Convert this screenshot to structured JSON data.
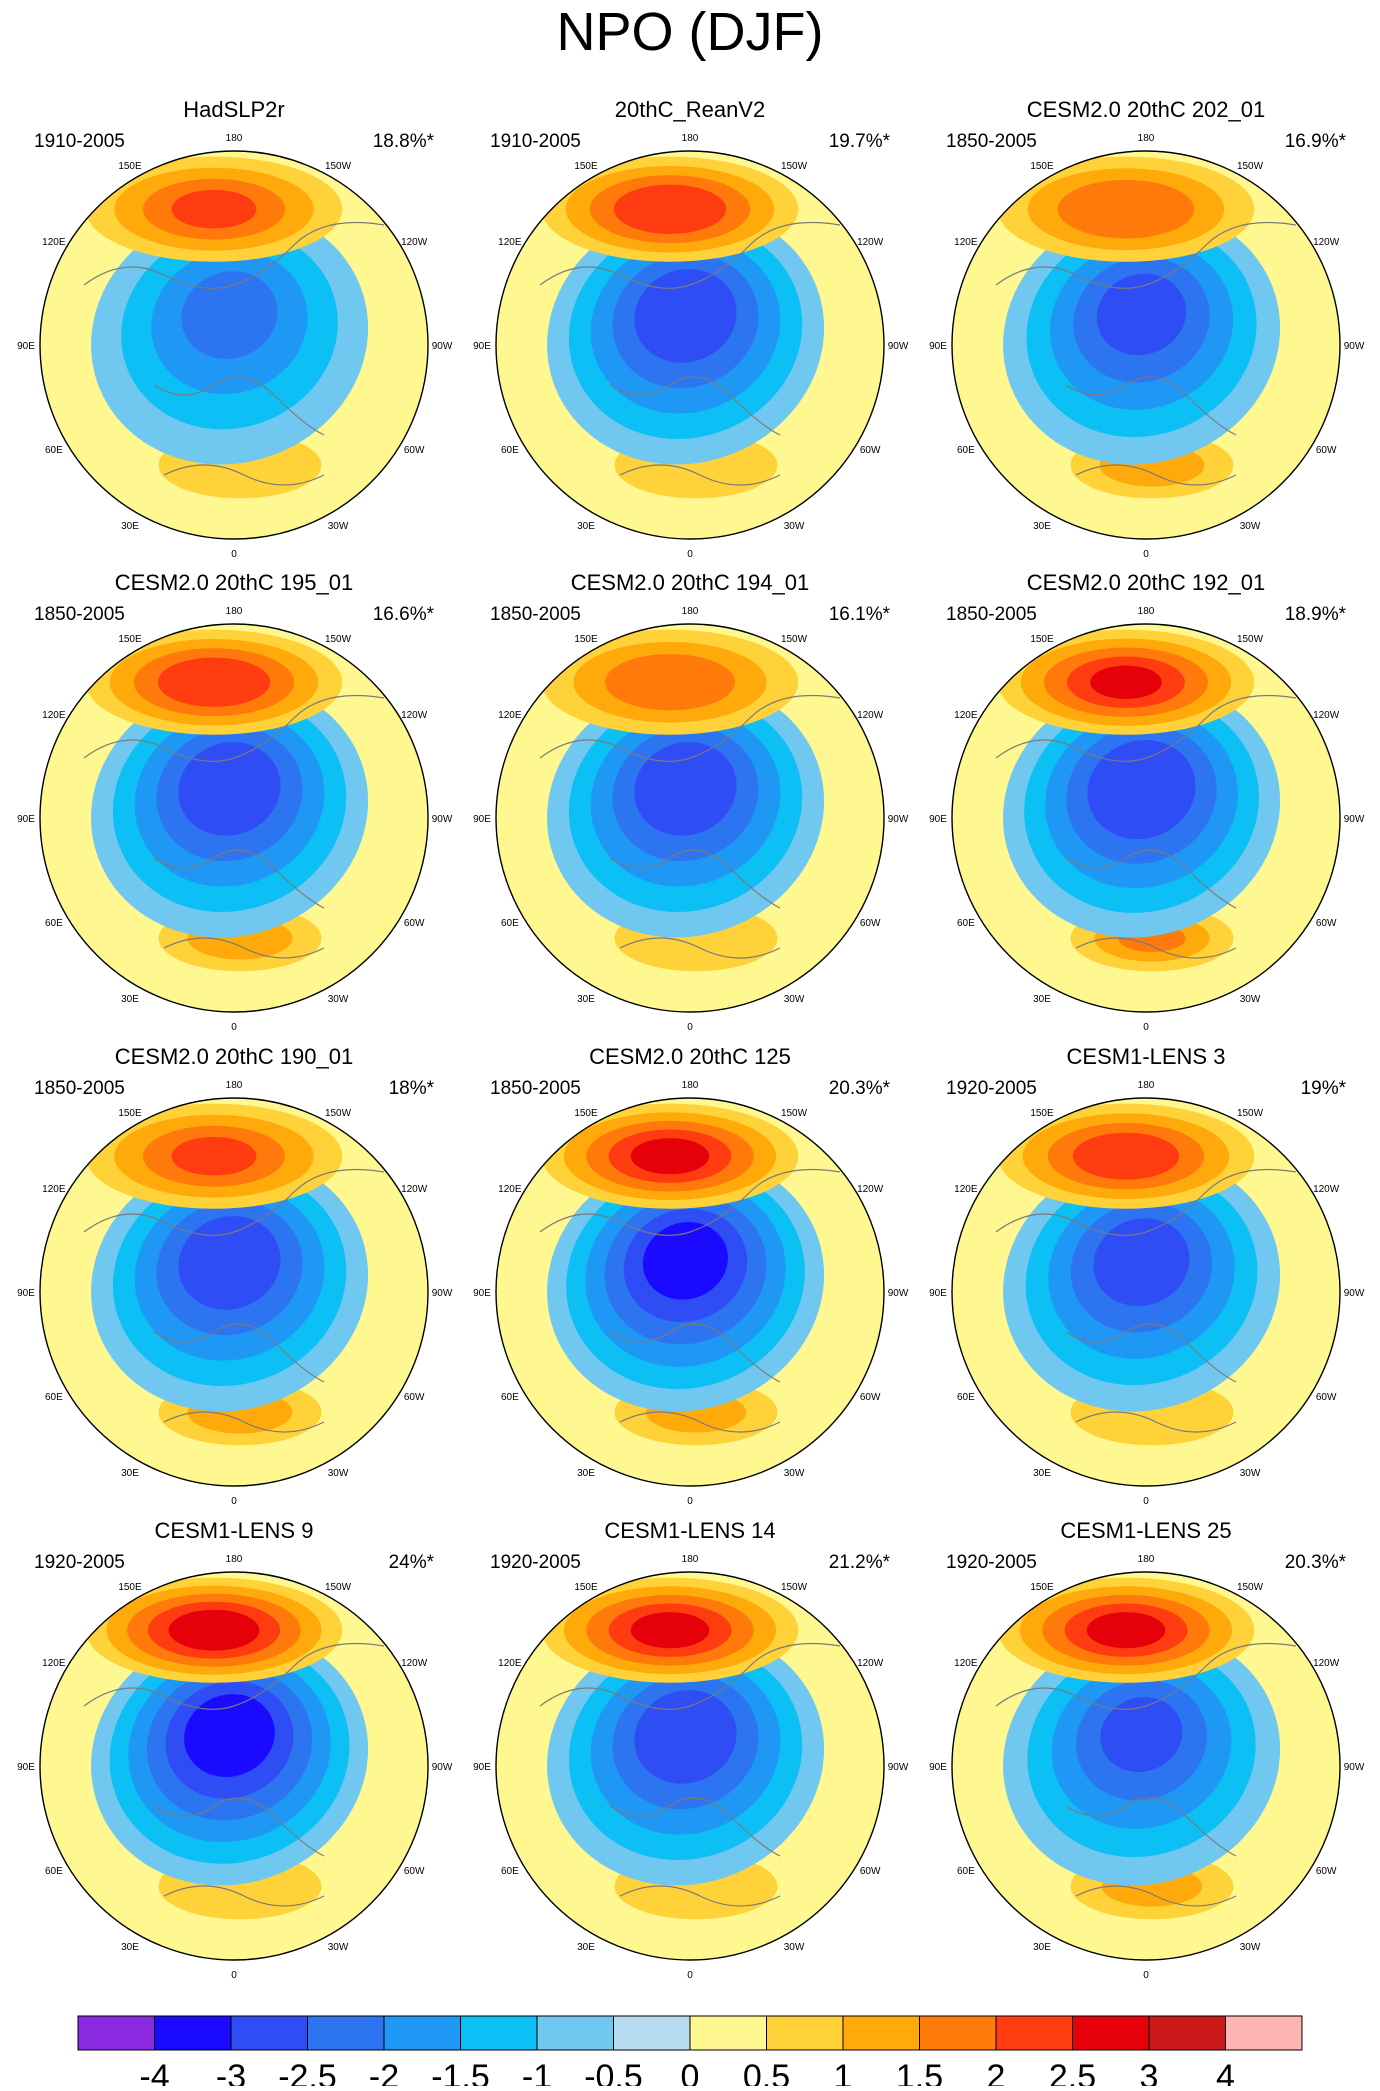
{
  "figure": {
    "title": "NPO (DJF)"
  },
  "chart_data": {
    "type": "heatmap",
    "title": "NPO (DJF)",
    "projection": "north polar stereographic",
    "lon_labels": [
      "180",
      "150E",
      "120E",
      "90E",
      "60E",
      "30E",
      "0",
      "30W",
      "60W",
      "90W",
      "120W",
      "150W"
    ],
    "colorbar": {
      "levels": [
        "-4",
        "-3",
        "-2.5",
        "-2",
        "-1.5",
        "-1",
        "-0.5",
        "0",
        "0.5",
        "1",
        "1.5",
        "2",
        "2.5",
        "3",
        "4"
      ],
      "colors": [
        "#8a2be2",
        "#1a0aff",
        "#2f4df5",
        "#2c74f0",
        "#1e97f5",
        "#0cbff5",
        "#70c8f0",
        "#b7dcf0",
        "#fff891",
        "#ffd23a",
        "#ffaa0a",
        "#ff7a0a",
        "#ff3c10",
        "#e6000a",
        "#cc1a1a",
        "#ffb4b4"
      ]
    },
    "panels": [
      {
        "title": "HadSLP2r",
        "period": "1910-2005",
        "variance": "18.8%*"
      },
      {
        "title": "20thC_ReanV2",
        "period": "1910-2005",
        "variance": "19.7%*"
      },
      {
        "title": "CESM2.0 20thC 202_01",
        "period": "1850-2005",
        "variance": "16.9%*"
      },
      {
        "title": "CESM2.0 20thC 195_01",
        "period": "1850-2005",
        "variance": "16.6%*"
      },
      {
        "title": "CESM2.0 20thC 194_01",
        "period": "1850-2005",
        "variance": "16.1%*"
      },
      {
        "title": "CESM2.0 20thC 192_01",
        "period": "1850-2005",
        "variance": "18.9%*"
      },
      {
        "title": "CESM2.0 20thC 190_01",
        "period": "1850-2005",
        "variance": "18%*"
      },
      {
        "title": "CESM2.0 20thC 125",
        "period": "1850-2005",
        "variance": "20.3%*"
      },
      {
        "title": "CESM1-LENS 3",
        "period": "1920-2005",
        "variance": "19%*"
      },
      {
        "title": "CESM1-LENS 9",
        "period": "1920-2005",
        "variance": "24%*"
      },
      {
        "title": "CESM1-LENS 14",
        "period": "1920-2005",
        "variance": "21.2%*"
      },
      {
        "title": "CESM1-LENS 25",
        "period": "1920-2005",
        "variance": "20.3%*"
      }
    ],
    "pattern_peaks": [
      {
        "high": 2.0,
        "low": -2.0,
        "atl": 0.8
      },
      {
        "high": 2.4,
        "low": -2.8,
        "atl": 0.6
      },
      {
        "high": 1.9,
        "low": -2.6,
        "atl": 1.2
      },
      {
        "high": 2.4,
        "low": -2.8,
        "atl": 1.2
      },
      {
        "high": 1.8,
        "low": -2.8,
        "atl": 0.8
      },
      {
        "high": 2.5,
        "low": -2.9,
        "atl": 1.5
      },
      {
        "high": 2.0,
        "low": -2.8,
        "atl": 1.2
      },
      {
        "high": 2.6,
        "low": -3.2,
        "atl": 1.1
      },
      {
        "high": 2.3,
        "low": -2.7,
        "atl": 0.9
      },
      {
        "high": 2.8,
        "low": -3.3,
        "atl": 0.8
      },
      {
        "high": 2.6,
        "low": -2.8,
        "atl": 0.7
      },
      {
        "high": 2.6,
        "low": -2.5,
        "atl": 1.1
      }
    ]
  }
}
